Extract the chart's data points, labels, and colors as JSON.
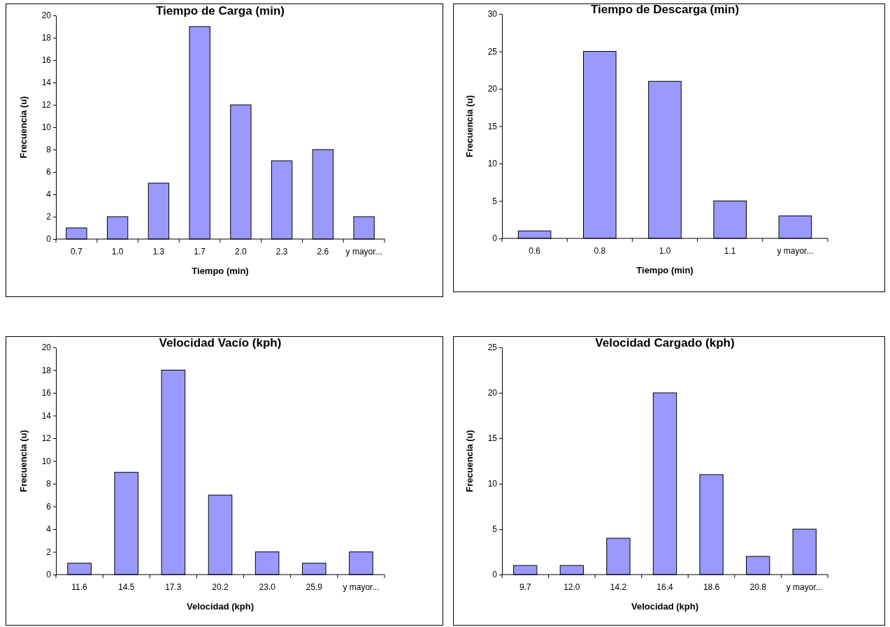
{
  "chart_data": [
    {
      "type": "bar",
      "title": "Tiempo de Carga (min)",
      "xlabel": "Tiempo (min)",
      "ylabel": "Frecuencia (u)",
      "categories": [
        "0.7",
        "1.0",
        "1.3",
        "1.7",
        "2.0",
        "2.3",
        "2.6",
        "y mayor..."
      ],
      "values": [
        1,
        2,
        5,
        19,
        12,
        7,
        8,
        2
      ],
      "color": "#9999ff",
      "ylim": [
        0,
        20
      ],
      "yticks": [
        0,
        2,
        4,
        6,
        8,
        10,
        12,
        14,
        16,
        18,
        20
      ]
    },
    {
      "type": "bar",
      "title": "Tiempo de Descarga (min)",
      "xlabel": "Tiempo (min)",
      "ylabel": "Frecuencia (u)",
      "categories": [
        "0.6",
        "0.8",
        "1.0",
        "1.1",
        "y mayor..."
      ],
      "values": [
        1,
        25,
        21,
        5,
        3
      ],
      "color": "#9999ff",
      "ylim": [
        0,
        30
      ],
      "yticks": [
        0,
        5,
        10,
        15,
        20,
        25,
        30
      ]
    },
    {
      "type": "bar",
      "title": "Velocidad Vacío (kph)",
      "xlabel": "Velocidad (kph)",
      "ylabel": "Frecuencia (u)",
      "categories": [
        "11.6",
        "14.5",
        "17.3",
        "20.2",
        "23.0",
        "25.9",
        "y mayor..."
      ],
      "values": [
        1,
        9,
        18,
        7,
        2,
        1,
        2
      ],
      "color": "#9999ff",
      "ylim": [
        0,
        20
      ],
      "yticks": [
        0,
        2,
        4,
        6,
        8,
        10,
        12,
        14,
        16,
        18,
        20
      ]
    },
    {
      "type": "bar",
      "title": "Velocidad Cargado (kph)",
      "xlabel": "Velocidad (kph)",
      "ylabel": "Frecuencia (u)",
      "categories": [
        "9.7",
        "12.0",
        "14.2",
        "16.4",
        "18.6",
        "20.8",
        "y mayor..."
      ],
      "values": [
        1,
        1,
        4,
        20,
        11,
        2,
        5
      ],
      "color": "#9999ff",
      "ylim": [
        0,
        25
      ],
      "yticks": [
        0,
        5,
        10,
        15,
        20,
        25
      ]
    }
  ]
}
